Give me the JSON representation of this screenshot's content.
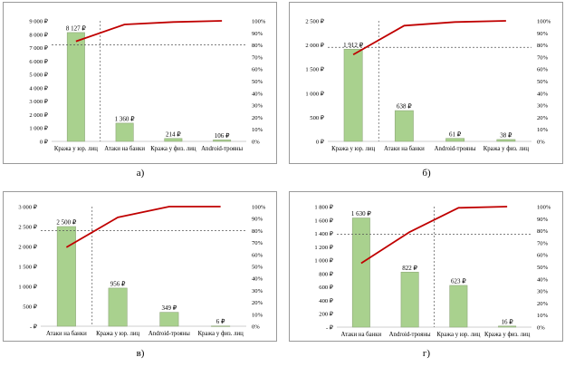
{
  "chart_data": [
    {
      "type": "bar",
      "caption": "а)",
      "categories": [
        "Кража у юр. лиц",
        "Атаки на банки",
        "Кража у физ. лиц",
        "Android-трояны"
      ],
      "series": [
        {
          "type": "bar",
          "values": [
            8127,
            1360,
            214,
            106
          ],
          "labels": [
            "8 127 ₽",
            "1 360 ₽",
            "214 ₽",
            "106 ₽"
          ],
          "color": "#a9d18e"
        },
        {
          "type": "line",
          "axis": "right",
          "values": [
            83,
            97,
            99,
            100
          ],
          "color": "#c00000"
        }
      ],
      "y_ticks": [
        "0 ₽",
        "1 000 ₽",
        "2 000 ₽",
        "3 000 ₽",
        "4 000 ₽",
        "5 000 ₽",
        "6 000 ₽",
        "7 000 ₽",
        "8 000 ₽",
        "9 000 ₽"
      ],
      "ylim": [
        0,
        9000
      ],
      "y2_ticks": [
        "0%",
        "10%",
        "20%",
        "30%",
        "40%",
        "50%",
        "60%",
        "70%",
        "80%",
        "90%",
        "100%"
      ],
      "y2lim": [
        0,
        100
      ],
      "threshold_pct": 80,
      "vline_after_category": 0
    },
    {
      "type": "bar",
      "caption": "б)",
      "categories": [
        "Кража у юр. лиц",
        "Атаки на банки",
        "Android-трояны",
        "Кража у физ. лиц"
      ],
      "series": [
        {
          "type": "bar",
          "values": [
            1912,
            638,
            61,
            38
          ],
          "labels": [
            "1 912 ₽",
            "638 ₽",
            "61 ₽",
            "38 ₽"
          ],
          "color": "#a9d18e"
        },
        {
          "type": "line",
          "axis": "right",
          "values": [
            72,
            96,
            99,
            100
          ],
          "color": "#c00000"
        }
      ],
      "y_ticks": [
        "0 ₽",
        "500 ₽",
        "1 000 ₽",
        "1 500 ₽",
        "2 000 ₽",
        "2 500 ₽"
      ],
      "ylim": [
        0,
        2500
      ],
      "y2_ticks": [
        "0%",
        "10%",
        "20%",
        "30%",
        "40%",
        "50%",
        "60%",
        "70%",
        "80%",
        "90%",
        "100%"
      ],
      "y2lim": [
        0,
        100
      ],
      "threshold_pct": 78,
      "vline_after_category": 0
    },
    {
      "type": "bar",
      "caption": "в)",
      "categories": [
        "Атаки на банки",
        "Кража у юр. лиц",
        "Android-трояны",
        "Кража у физ. лиц"
      ],
      "series": [
        {
          "type": "bar",
          "values": [
            2500,
            956,
            349,
            6
          ],
          "labels": [
            "2 500 ₽",
            "956 ₽",
            "349 ₽",
            "6 ₽"
          ],
          "color": "#a9d18e"
        },
        {
          "type": "line",
          "axis": "right",
          "values": [
            66,
            91,
            100,
            100
          ],
          "color": "#c00000"
        }
      ],
      "y_ticks": [
        "- ₽",
        "500 ₽",
        "1 000 ₽",
        "1 500 ₽",
        "2 000 ₽",
        "2 500 ₽",
        "3 000 ₽"
      ],
      "ylim": [
        0,
        3000
      ],
      "y2_ticks": [
        "0%",
        "10%",
        "20%",
        "30%",
        "40%",
        "50%",
        "60%",
        "70%",
        "80%",
        "90%",
        "100%"
      ],
      "y2lim": [
        0,
        100
      ],
      "threshold_pct": 80,
      "vline_after_category": 0
    },
    {
      "type": "bar",
      "caption": "г)",
      "categories": [
        "Атаки на банки",
        "Android-трояны",
        "Кража у юр. лиц",
        "Кража у физ. лиц"
      ],
      "series": [
        {
          "type": "bar",
          "values": [
            1630,
            822,
            623,
            16
          ],
          "labels": [
            "1 630 ₽",
            "822 ₽",
            "623 ₽",
            "16 ₽"
          ],
          "color": "#a9d18e"
        },
        {
          "type": "line",
          "axis": "right",
          "values": [
            53,
            79,
            99,
            100
          ],
          "color": "#c00000"
        }
      ],
      "y_ticks": [
        "- ₽",
        "200 ₽",
        "400 ₽",
        "600 ₽",
        "800 ₽",
        "1 000 ₽",
        "1 200 ₽",
        "1 400 ₽",
        "1 600 ₽",
        "1 800 ₽"
      ],
      "ylim": [
        0,
        1800
      ],
      "y2_ticks": [
        "0%",
        "10%",
        "20%",
        "30%",
        "40%",
        "50%",
        "60%",
        "70%",
        "80%",
        "90%",
        "100%"
      ],
      "y2lim": [
        0,
        100
      ],
      "threshold_pct": 77,
      "vline_after_category": 1
    }
  ]
}
